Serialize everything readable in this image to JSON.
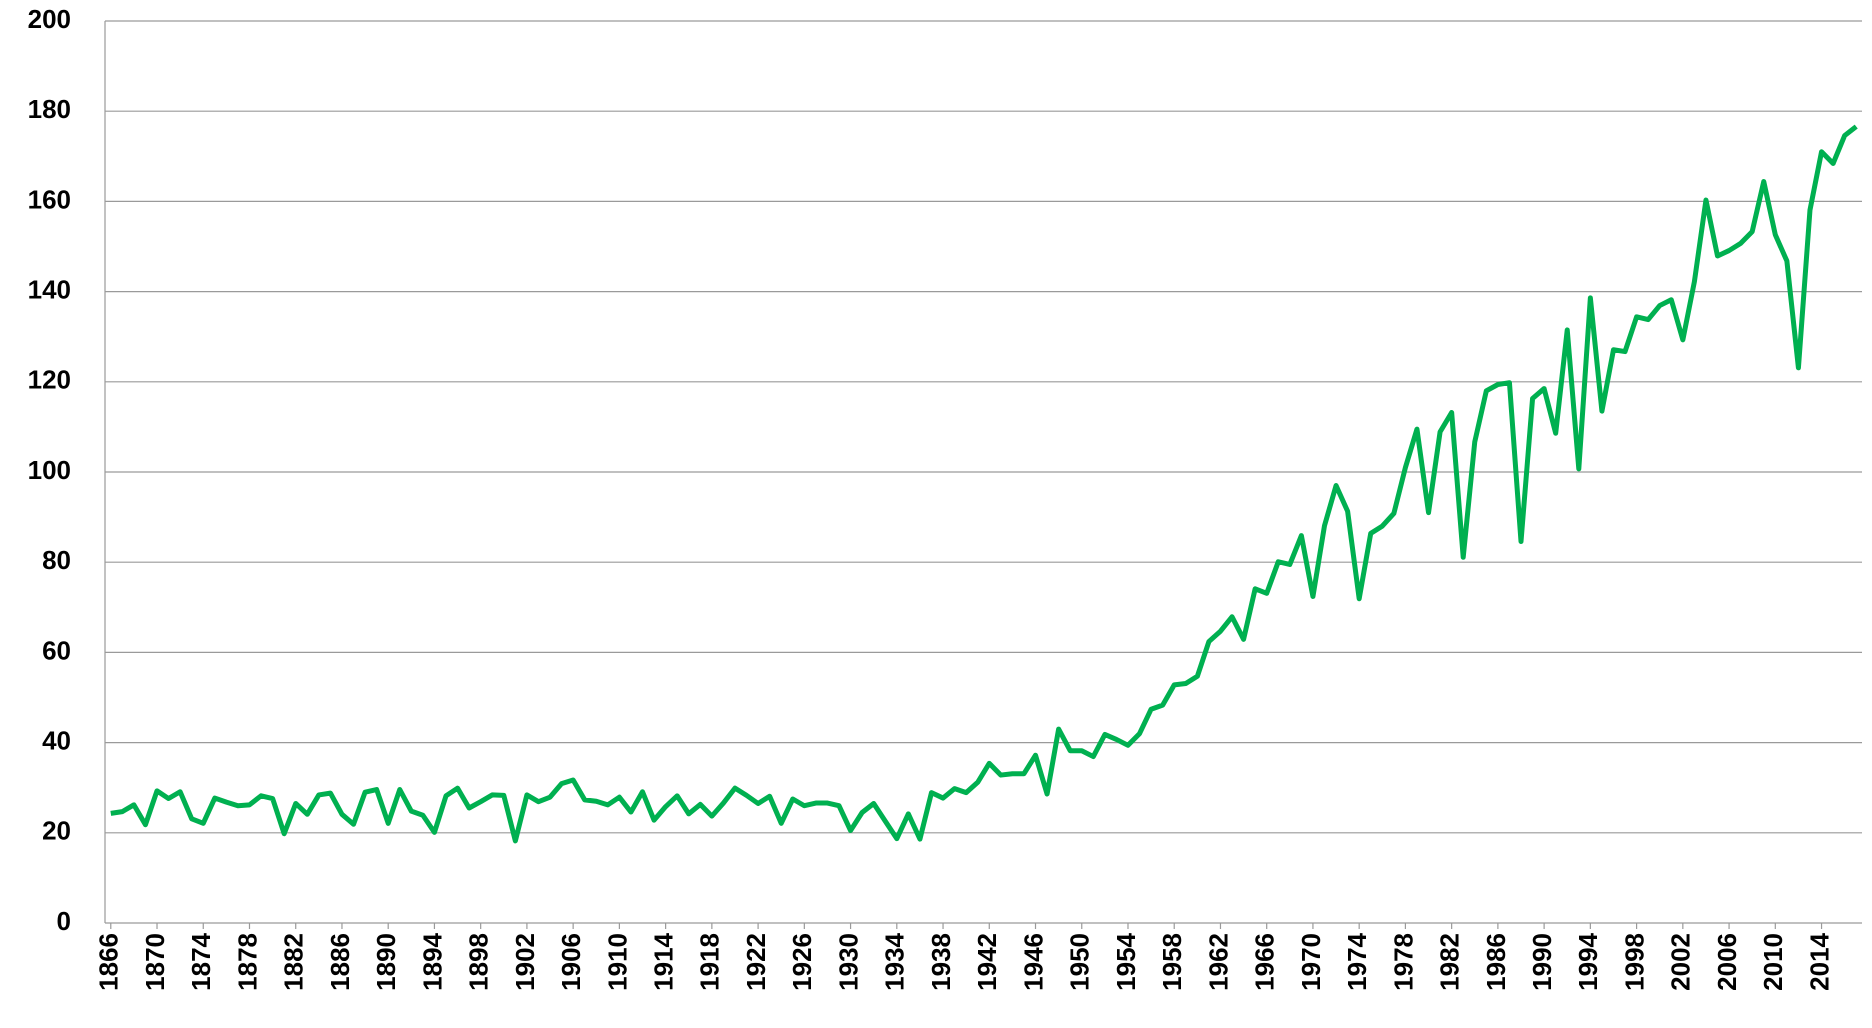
{
  "chart_data": {
    "type": "line",
    "x": [
      1866,
      1867,
      1868,
      1869,
      1870,
      1871,
      1872,
      1873,
      1874,
      1875,
      1876,
      1877,
      1878,
      1879,
      1880,
      1881,
      1882,
      1883,
      1884,
      1885,
      1886,
      1887,
      1888,
      1889,
      1890,
      1891,
      1892,
      1893,
      1894,
      1895,
      1896,
      1897,
      1898,
      1899,
      1900,
      1901,
      1902,
      1903,
      1904,
      1905,
      1906,
      1907,
      1908,
      1909,
      1910,
      1911,
      1912,
      1913,
      1914,
      1915,
      1916,
      1917,
      1918,
      1919,
      1920,
      1921,
      1922,
      1923,
      1924,
      1925,
      1926,
      1927,
      1928,
      1929,
      1930,
      1931,
      1932,
      1933,
      1934,
      1935,
      1936,
      1937,
      1938,
      1939,
      1940,
      1941,
      1942,
      1943,
      1944,
      1945,
      1946,
      1947,
      1948,
      1949,
      1950,
      1951,
      1952,
      1953,
      1954,
      1955,
      1956,
      1957,
      1958,
      1959,
      1960,
      1961,
      1962,
      1963,
      1964,
      1965,
      1966,
      1967,
      1968,
      1969,
      1970,
      1971,
      1972,
      1973,
      1974,
      1975,
      1976,
      1977,
      1978,
      1979,
      1980,
      1981,
      1982,
      1983,
      1984,
      1985,
      1986,
      1987,
      1988,
      1989,
      1990,
      1991,
      1992,
      1993,
      1994,
      1995,
      1996,
      1997,
      1998,
      1999,
      2000,
      2001,
      2002,
      2003,
      2004,
      2005,
      2006,
      2007,
      2008,
      2009,
      2010,
      2011,
      2012,
      2013,
      2014,
      2015,
      2016,
      2017
    ],
    "series": [
      {
        "color": "#00b050",
        "values": [
          24.3,
          24.7,
          26.2,
          21.8,
          29.3,
          27.6,
          29.1,
          23.1,
          22.1,
          27.7,
          26.8,
          26.0,
          26.2,
          28.2,
          27.6,
          19.8,
          26.5,
          24.1,
          28.4,
          28.8,
          24.1,
          21.9,
          29.0,
          29.6,
          22.1,
          29.6,
          24.8,
          23.9,
          20.1,
          28.2,
          29.9,
          25.5,
          26.9,
          28.4,
          28.3,
          18.2,
          28.4,
          26.9,
          27.9,
          30.9,
          31.7,
          27.3,
          27.0,
          26.2,
          27.9,
          24.6,
          29.1,
          22.8,
          25.8,
          28.2,
          24.2,
          26.3,
          23.7,
          26.6,
          29.9,
          28.3,
          26.5,
          28.1,
          22.1,
          27.5,
          26.0,
          26.6,
          26.6,
          26.0,
          20.5,
          24.5,
          26.5,
          22.6,
          18.7,
          24.2,
          18.6,
          28.9,
          27.7,
          29.8,
          28.9,
          31.2,
          35.4,
          32.8,
          33.1,
          33.1,
          37.2,
          28.6,
          43.0,
          38.2,
          38.2,
          36.9,
          41.8,
          40.7,
          39.4,
          42.0,
          47.4,
          48.3,
          52.8,
          53.1,
          54.7,
          62.4,
          64.7,
          67.9,
          62.9,
          74.1,
          73.1,
          80.1,
          79.5,
          85.9,
          72.4,
          88.1,
          97.0,
          91.3,
          71.9,
          86.4,
          88.0,
          90.8,
          101.0,
          109.5,
          91.0,
          108.9,
          113.2,
          81.1,
          106.7,
          118.0,
          119.4,
          119.8,
          84.6,
          116.3,
          118.5,
          108.6,
          131.5,
          100.7,
          138.6,
          113.5,
          127.1,
          126.7,
          134.4,
          133.8,
          136.9,
          138.2,
          129.3,
          142.2,
          160.3,
          147.9,
          149.1,
          150.7,
          153.3,
          164.4,
          152.6,
          146.8,
          123.1,
          158.1,
          171.0,
          168.4,
          174.6,
          176.6
        ]
      }
    ],
    "xlim": [
      1865.5,
      2017.5
    ],
    "xticks": [
      1866,
      1870,
      1874,
      1878,
      1882,
      1886,
      1890,
      1894,
      1898,
      1902,
      1906,
      1910,
      1914,
      1918,
      1922,
      1926,
      1930,
      1934,
      1938,
      1942,
      1946,
      1950,
      1954,
      1958,
      1962,
      1966,
      1970,
      1974,
      1978,
      1982,
      1986,
      1990,
      1994,
      1998,
      2002,
      2006,
      2010,
      2014
    ],
    "ylim": [
      0,
      200
    ],
    "yticks": [
      0,
      20,
      40,
      60,
      80,
      100,
      120,
      140,
      160,
      180,
      200
    ],
    "grid": true
  }
}
